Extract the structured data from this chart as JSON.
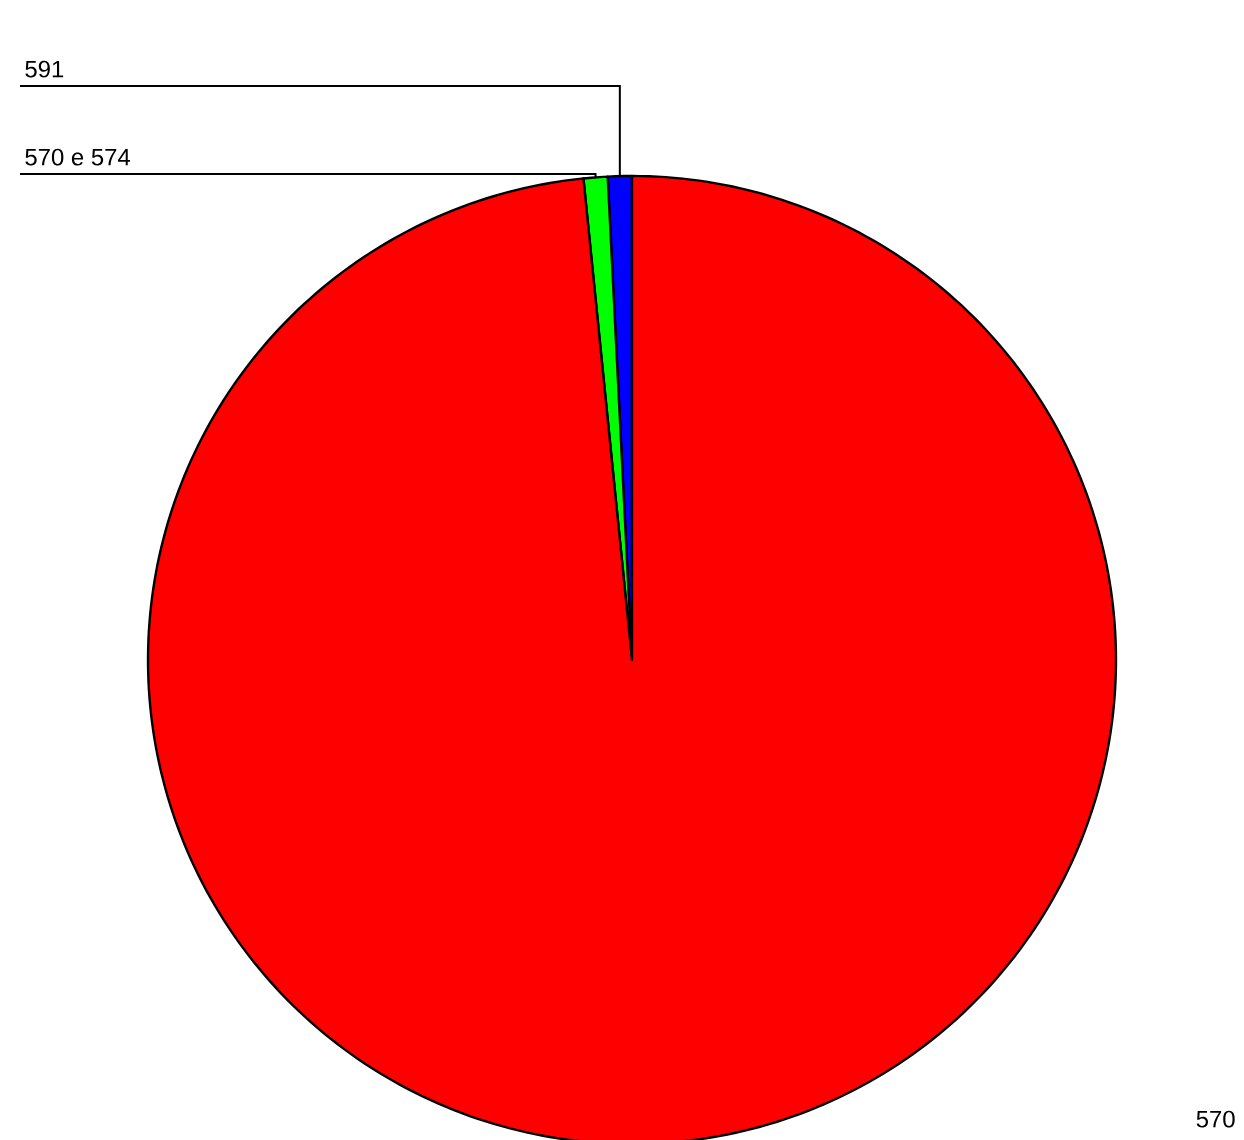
{
  "chart_data": {
    "type": "pie",
    "categories": [
      "591",
      "570 e 574",
      "570"
    ],
    "values": [
      0.8,
      0.8,
      98.4
    ],
    "colors": [
      "#0000ff",
      "#00ff00",
      "#ff0000"
    ]
  }
}
